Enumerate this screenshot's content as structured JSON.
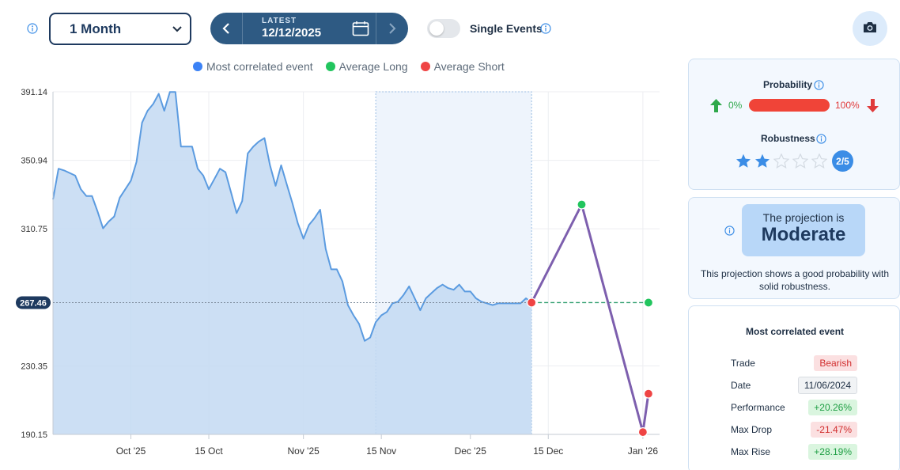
{
  "toolbar": {
    "period_select": "1 Month",
    "date_caption": "LATEST",
    "date_value": "12/12/2025",
    "toggle_label": "Single Events"
  },
  "legend": [
    {
      "label": "Most correlated event",
      "color": "#3b82f6"
    },
    {
      "label": "Average Long",
      "color": "#22c55e"
    },
    {
      "label": "Average Short",
      "color": "#ef4444"
    }
  ],
  "chart_data": {
    "type": "line",
    "x_tick_labels": [
      "Oct '25",
      "15 Oct",
      "Nov '25",
      "15 Nov",
      "Dec '25",
      "15 Dec",
      "Jan '26"
    ],
    "y_tick_labels": [
      "391.14",
      "350.94",
      "310.75",
      "230.35",
      "190.15"
    ],
    "ylim": [
      190.15,
      391.14
    ],
    "current_price_label": "267.46",
    "series": [
      {
        "x": [
          "2025-09-17",
          "2025-09-18",
          "2025-09-19",
          "2025-09-21",
          "2025-09-22",
          "2025-09-23",
          "2025-09-24",
          "2025-09-25",
          "2025-09-26",
          "2025-09-27",
          "2025-09-28",
          "2025-09-29",
          "2025-09-30",
          "2025-10-01",
          "2025-10-02",
          "2025-10-03",
          "2025-10-04",
          "2025-10-05",
          "2025-10-06",
          "2025-10-07",
          "2025-10-08",
          "2025-10-09",
          "2025-10-10",
          "2025-10-11",
          "2025-10-12",
          "2025-10-13",
          "2025-10-14",
          "2025-10-15",
          "2025-10-16",
          "2025-10-17",
          "2025-10-18",
          "2025-10-19",
          "2025-10-20",
          "2025-10-21",
          "2025-10-22",
          "2025-10-23",
          "2025-10-24",
          "2025-10-25",
          "2025-10-26",
          "2025-10-27",
          "2025-10-28",
          "2025-10-29",
          "2025-10-30",
          "2025-10-31",
          "2025-11-01",
          "2025-11-02",
          "2025-11-03",
          "2025-11-04",
          "2025-11-05",
          "2025-11-06",
          "2025-11-07",
          "2025-11-08",
          "2025-11-09",
          "2025-11-10",
          "2025-11-11",
          "2025-11-12",
          "2025-11-13",
          "2025-11-14",
          "2025-11-15",
          "2025-11-16",
          "2025-11-17",
          "2025-11-18",
          "2025-11-19",
          "2025-11-20",
          "2025-11-21",
          "2025-11-22",
          "2025-11-23",
          "2025-11-24",
          "2025-11-25",
          "2025-11-26",
          "2025-11-27",
          "2025-11-28",
          "2025-11-29",
          "2025-11-30",
          "2025-12-01",
          "2025-12-02",
          "2025-12-03",
          "2025-12-04",
          "2025-12-05",
          "2025-12-06",
          "2025-12-07",
          "2025-12-08",
          "2025-12-09",
          "2025-12-10",
          "2025-12-11",
          "2025-12-12"
        ],
        "y": [
          328,
          346,
          345,
          342,
          334,
          330,
          330,
          321,
          311,
          315,
          318,
          329,
          334,
          339,
          350,
          373,
          380,
          384,
          390,
          380,
          391,
          391,
          359,
          359,
          359,
          346,
          342,
          334,
          340,
          346,
          344,
          332,
          320,
          327,
          355,
          359,
          362,
          364,
          348,
          336,
          348,
          337,
          326,
          314,
          305,
          313,
          317,
          322,
          299,
          287,
          287,
          280,
          266,
          260,
          255,
          245,
          247,
          256,
          260,
          262,
          267,
          268,
          272,
          277,
          270,
          263,
          270,
          273,
          276,
          278,
          276,
          275,
          278,
          274,
          274,
          270,
          268,
          267,
          266,
          267,
          267,
          267,
          267,
          267,
          270,
          267.46
        ]
      },
      {
        "name": "Average Long",
        "x": [
          "2025-12-12",
          "2025-12-21",
          "2026-01-02"
        ],
        "y": [
          267.46,
          325,
          267.46
        ]
      },
      {
        "name": "Average Short",
        "x": [
          "2025-12-12",
          "2025-12-21",
          "2026-01-01",
          "2026-01-02"
        ],
        "y": [
          267.46,
          325,
          191.5,
          214
        ]
      }
    ],
    "shaded_region": {
      "x_start": "2025-11-14",
      "x_end": "2025-12-12"
    }
  },
  "probability": {
    "title": "Probability",
    "left_pct": "0%",
    "right_pct": "100%",
    "value_pct": 100
  },
  "robustness": {
    "title": "Robustness",
    "rating": 2,
    "max": 5,
    "badge": "2/5"
  },
  "projection": {
    "caption": "The projection is",
    "value": "Moderate",
    "description": "This projection shows a good probability with solid robustness."
  },
  "most_correlated_event": {
    "title": "Most correlated event",
    "rows": [
      {
        "label": "Trade",
        "value": "Bearish",
        "style": "red"
      },
      {
        "label": "Date",
        "value": "11/06/2024",
        "style": "grey"
      },
      {
        "label": "Performance",
        "value": "+20.26%",
        "style": "green"
      },
      {
        "label": "Max Drop",
        "value": "-21.47%",
        "style": "red"
      },
      {
        "label": "Max Rise",
        "value": "+28.19%",
        "style": "green"
      }
    ]
  },
  "colors": {
    "primary_line": "#5b9be0",
    "primary_fill": "#c3d9f2",
    "projection_line": "#7d5fae",
    "long_dot": "#22c55e",
    "short_dot": "#ef4444",
    "nav_bg": "#2e5a83"
  },
  "icons": {
    "info": "info-icon",
    "nav_prev": "chevron-left-icon",
    "nav_next": "chevron-right-icon",
    "calendar": "calendar-icon",
    "camera": "camera-icon",
    "arrow_up": "arrow-up-icon",
    "arrow_down": "arrow-down-icon",
    "star": "star-icon"
  }
}
